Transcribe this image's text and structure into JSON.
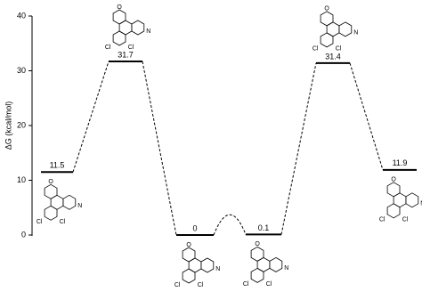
{
  "chart_data": {
    "type": "energy-profile",
    "ylabel": "ΔG (kcal/mol)",
    "values": [
      11.5,
      31.7,
      0,
      0.1,
      31.4,
      11.9
    ],
    "color": "#000000",
    "ylim": [
      0,
      40
    ],
    "yticks": [
      0,
      10,
      20,
      30,
      40
    ],
    "structures": [
      {
        "atoms": [
          "O",
          "N",
          "Cl",
          "Cl"
        ]
      },
      {
        "atoms": [
          "O",
          "N",
          "Cl",
          "Cl"
        ]
      },
      {
        "atoms": [
          "O",
          "N",
          "Cl",
          "Cl"
        ]
      },
      {
        "atoms": [
          "O",
          "N",
          "Cl",
          "Cl"
        ]
      },
      {
        "atoms": [
          "O",
          "N",
          "Cl",
          "Cl"
        ]
      },
      {
        "atoms": [
          "O",
          "N",
          "Cl",
          "Cl"
        ]
      }
    ]
  }
}
